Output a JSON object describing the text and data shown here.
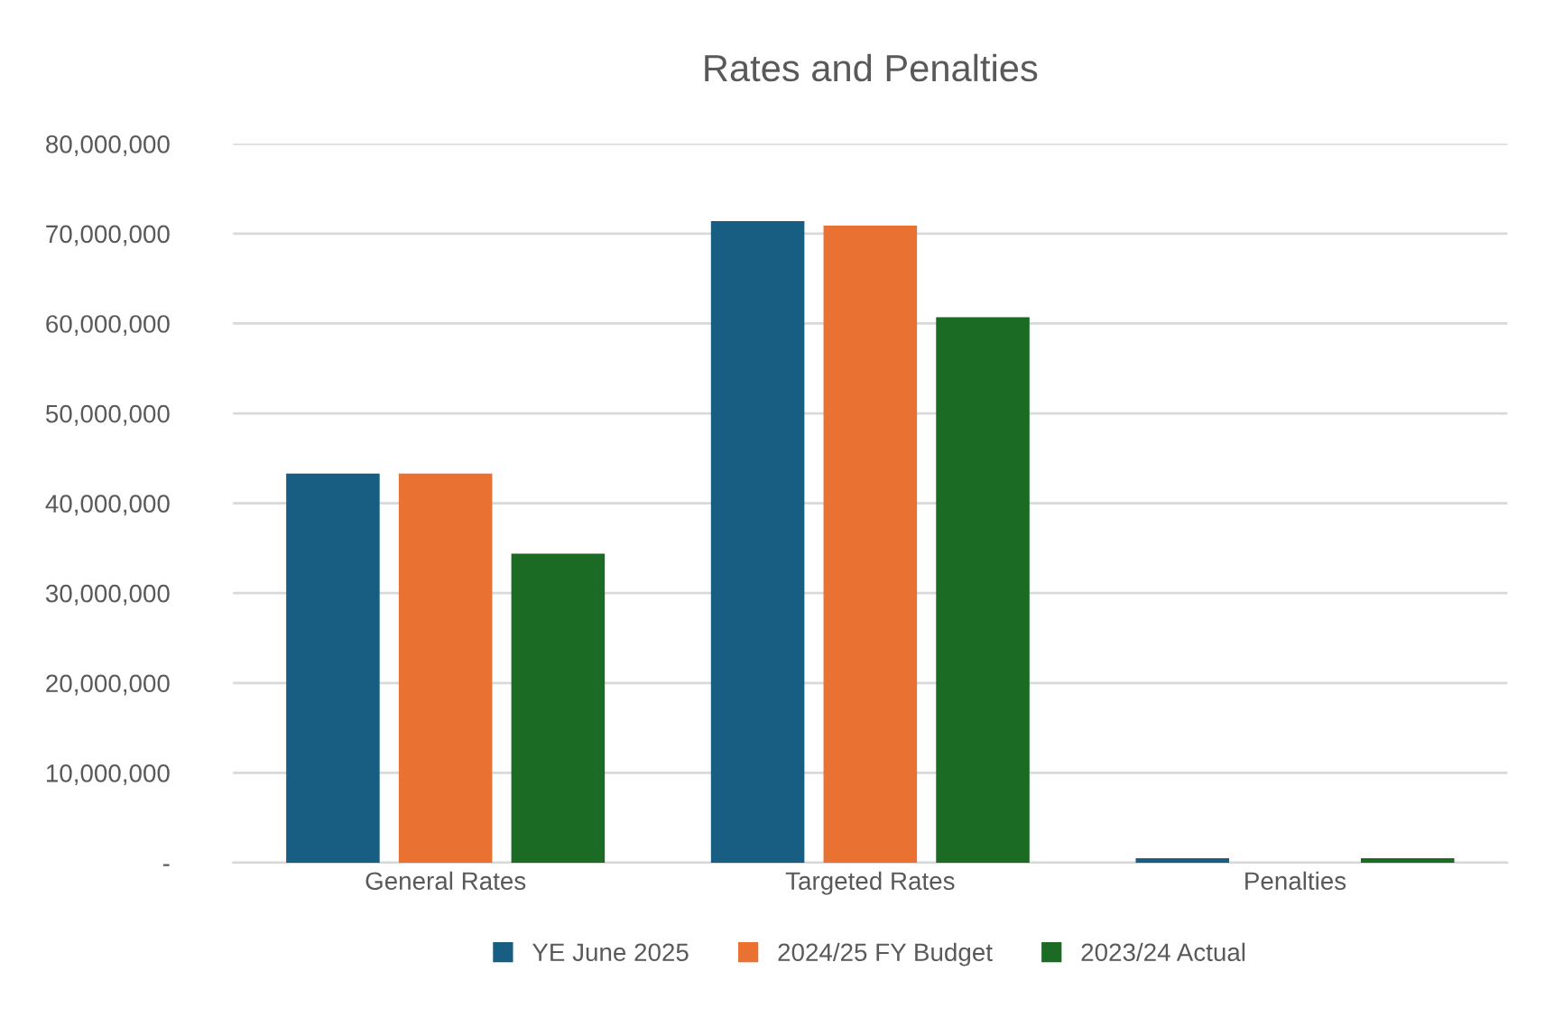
{
  "chart_data": {
    "type": "bar",
    "title": "Rates and Penalties",
    "categories": [
      "General Rates",
      "Targeted Rates",
      "Penalties"
    ],
    "series": [
      {
        "name": "YE June 2025",
        "color": "#175e82",
        "values": [
          43300000,
          71400000,
          500000
        ]
      },
      {
        "name": "2024/25 FY Budget",
        "color": "#e97233",
        "values": [
          43300000,
          70900000,
          0
        ]
      },
      {
        "name": "2023/24 Actual",
        "color": "#1b6b24",
        "values": [
          34400000,
          60700000,
          500000
        ]
      }
    ],
    "ylim": [
      0,
      80000000
    ],
    "yticks": [
      {
        "value": 0,
        "label": "-"
      },
      {
        "value": 10000000,
        "label": "10,000,000"
      },
      {
        "value": 20000000,
        "label": "20,000,000"
      },
      {
        "value": 30000000,
        "label": "30,000,000"
      },
      {
        "value": 40000000,
        "label": "40,000,000"
      },
      {
        "value": 50000000,
        "label": "50,000,000"
      },
      {
        "value": 60000000,
        "label": "60,000,000"
      },
      {
        "value": 70000000,
        "label": "70,000,000"
      },
      {
        "value": 80000000,
        "label": "80,000,000"
      }
    ],
    "grid": "y",
    "legend": "bottom"
  }
}
